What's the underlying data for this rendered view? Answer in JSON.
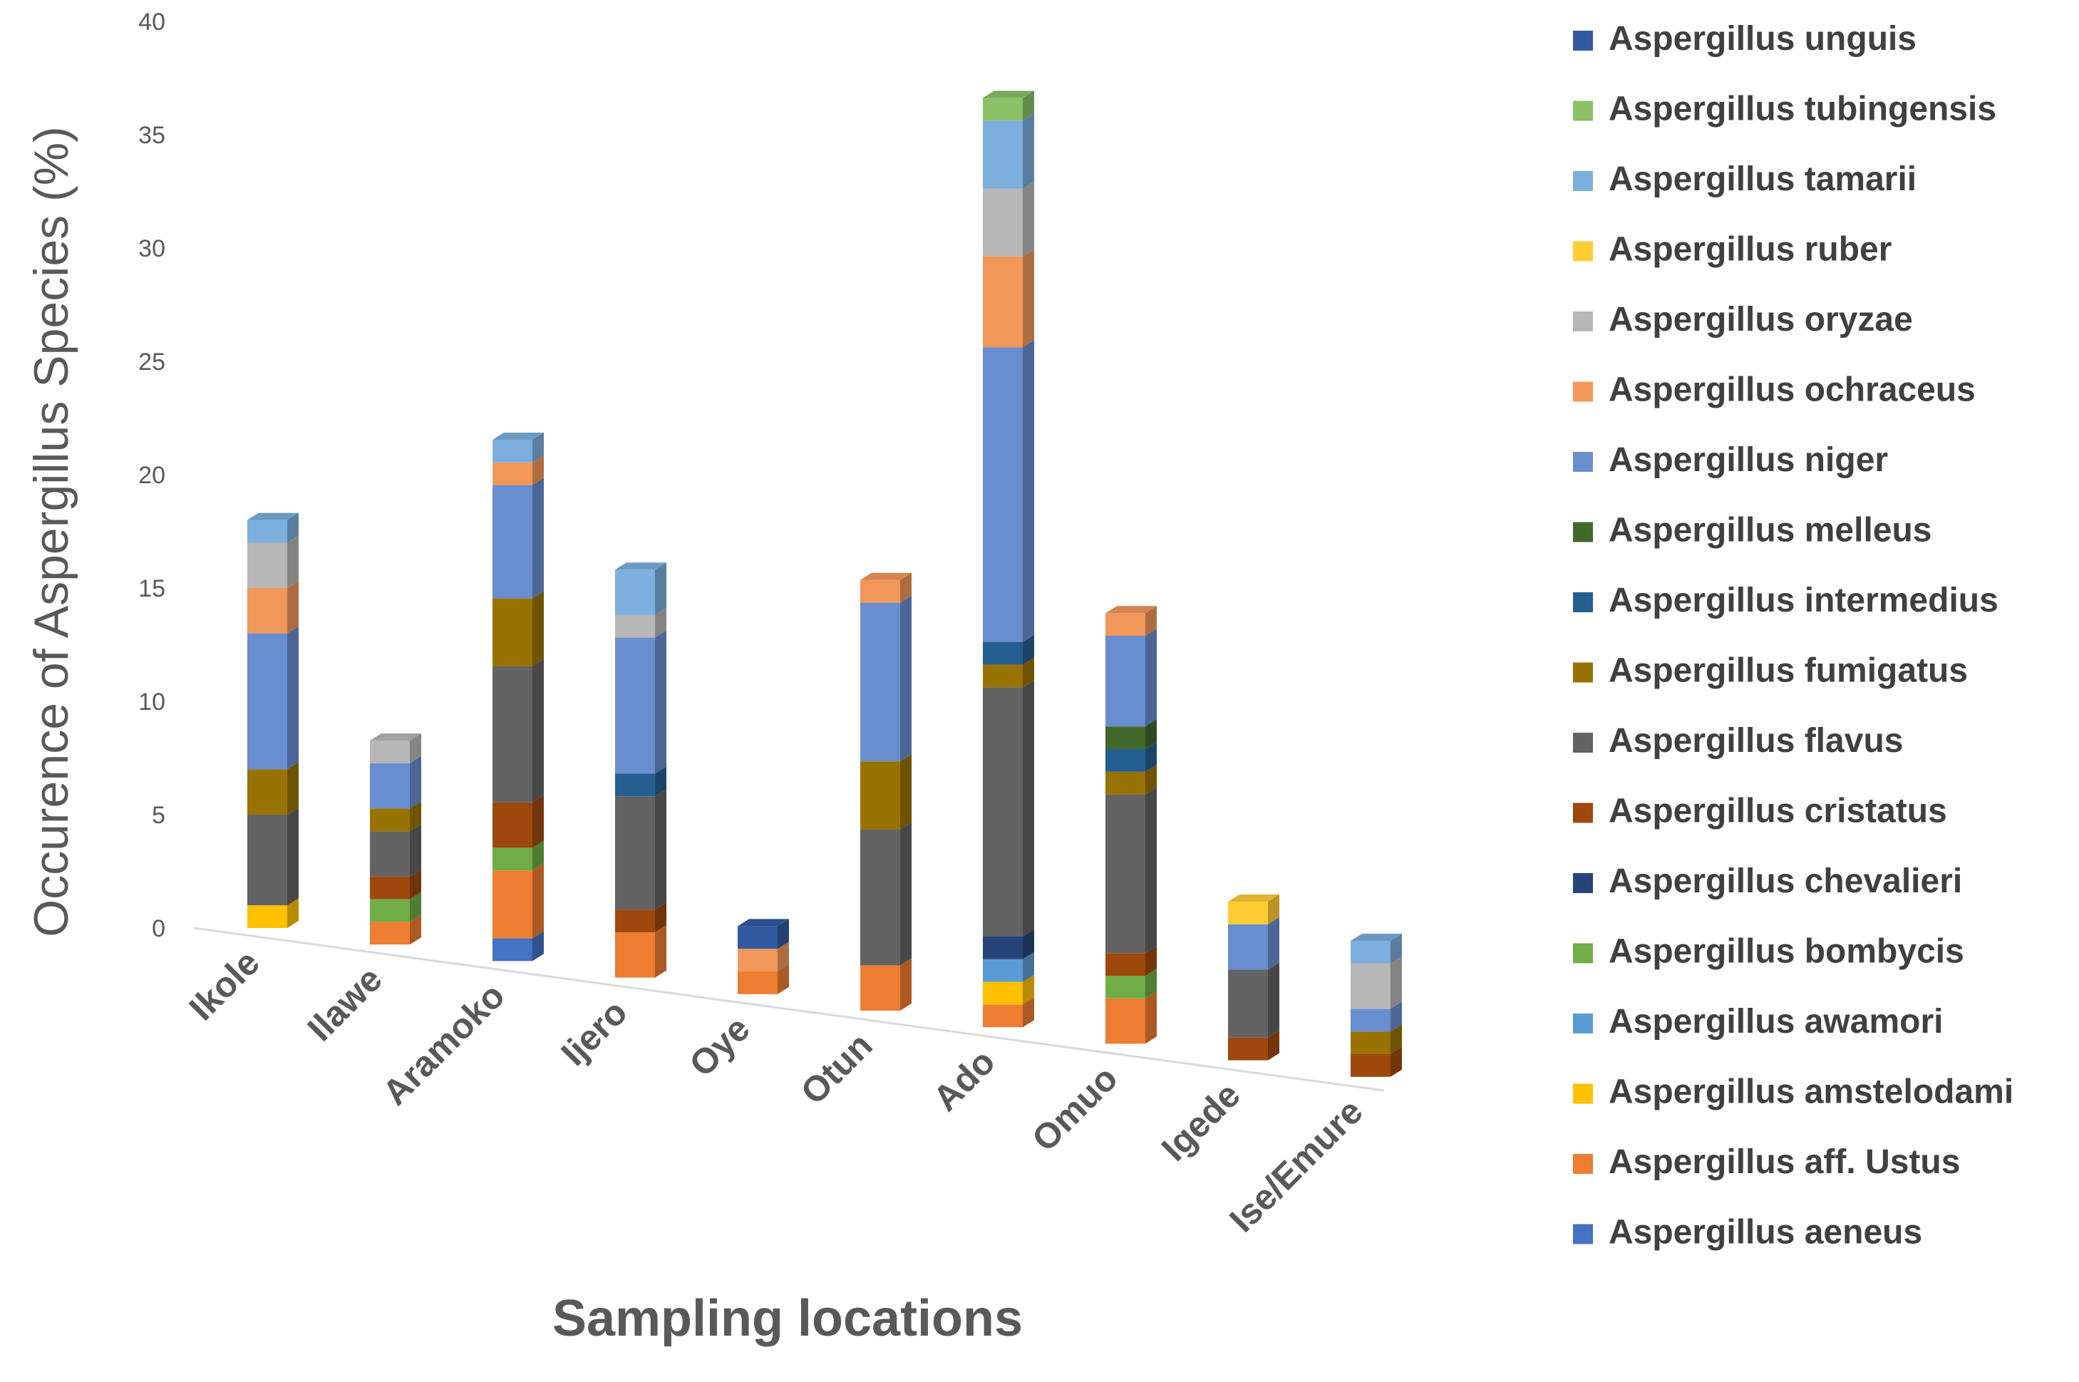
{
  "chart_data": {
    "type": "bar",
    "stacked": true,
    "style": "3d-perspective",
    "ylabel": "Occurence of Aspergillus Species (%)",
    "xlabel": "Sampling locations",
    "ylim": [
      0,
      40
    ],
    "yticks": [
      "0",
      "5",
      "10",
      "15",
      "20",
      "25",
      "30",
      "35",
      "40"
    ],
    "grid": false,
    "legend_position": "right",
    "categories": [
      "Ikole",
      "Ilawe",
      "Aramoko",
      "Ijero",
      "Oye",
      "Otun",
      "Ado",
      "Omuo",
      "Igede",
      "Ise/Emure"
    ],
    "series": [
      {
        "name": "Aspergillus aeneus",
        "color": "#4472C4",
        "values": [
          0,
          0,
          1,
          0,
          0,
          0,
          0,
          0,
          0,
          0
        ]
      },
      {
        "name": "Aspergillus aff. Ustus",
        "color": "#ED7D31",
        "values": [
          0,
          1,
          3,
          2,
          1,
          2,
          1,
          2,
          0,
          0
        ]
      },
      {
        "name": "Aspergillus amstelodami",
        "color": "#FFC000",
        "values": [
          1,
          0,
          0,
          0,
          0,
          0,
          1,
          0,
          0,
          0
        ]
      },
      {
        "name": "Aspergillus awamori",
        "color": "#5B9BD5",
        "values": [
          0,
          0,
          0,
          0,
          0,
          0,
          1,
          0,
          0,
          0
        ]
      },
      {
        "name": "Aspergillus bombycis",
        "color": "#70AD47",
        "values": [
          0,
          1,
          1,
          0,
          0,
          0,
          0,
          1,
          0,
          0
        ]
      },
      {
        "name": "Aspergillus chevalieri",
        "color": "#264478",
        "values": [
          0,
          0,
          0,
          0,
          0,
          0,
          1,
          0,
          0,
          0
        ]
      },
      {
        "name": "Aspergillus cristatus",
        "color": "#9E480E",
        "values": [
          0,
          1,
          2,
          1,
          0,
          0,
          0,
          1,
          1,
          1
        ]
      },
      {
        "name": "Aspergillus flavus",
        "color": "#636363",
        "values": [
          4,
          2,
          6,
          5,
          0,
          6,
          11,
          7,
          3,
          0
        ]
      },
      {
        "name": "Aspergillus fumigatus",
        "color": "#997300",
        "values": [
          2,
          1,
          3,
          0,
          0,
          3,
          1,
          1,
          0,
          1
        ]
      },
      {
        "name": "Aspergillus intermedius",
        "color": "#255E91",
        "values": [
          0,
          0,
          0,
          1,
          0,
          0,
          1,
          1,
          0,
          0
        ]
      },
      {
        "name": "Aspergillus melleus",
        "color": "#43682B",
        "values": [
          0,
          0,
          0,
          0,
          0,
          0,
          0,
          1,
          0,
          0
        ]
      },
      {
        "name": "Aspergillus niger",
        "color": "#698ED0",
        "values": [
          6,
          2,
          5,
          6,
          0,
          7,
          13,
          4,
          2,
          1
        ]
      },
      {
        "name": "Aspergillus ochraceus",
        "color": "#F1975A",
        "values": [
          2,
          0,
          1,
          0,
          1,
          1,
          4,
          1,
          0,
          0
        ]
      },
      {
        "name": "Aspergillus oryzae",
        "color": "#B7B7B7",
        "values": [
          2,
          1,
          0,
          1,
          0,
          0,
          3,
          0,
          0,
          2
        ]
      },
      {
        "name": "Aspergillus ruber",
        "color": "#FFCD33",
        "values": [
          0,
          0,
          0,
          0,
          0,
          0,
          0,
          0,
          1,
          0
        ]
      },
      {
        "name": "Aspergillus tamarii",
        "color": "#7CAFDD",
        "values": [
          1,
          0,
          1,
          2,
          0,
          0,
          3,
          0,
          0,
          1
        ]
      },
      {
        "name": "Aspergillus tubingensis",
        "color": "#8CC168",
        "values": [
          0,
          0,
          0,
          0,
          0,
          0,
          1,
          0,
          0,
          0
        ]
      },
      {
        "name": "Aspergillus unguis",
        "color": "#335AA1",
        "values": [
          0,
          0,
          0,
          0,
          1,
          0,
          0,
          0,
          0,
          0
        ]
      }
    ]
  }
}
